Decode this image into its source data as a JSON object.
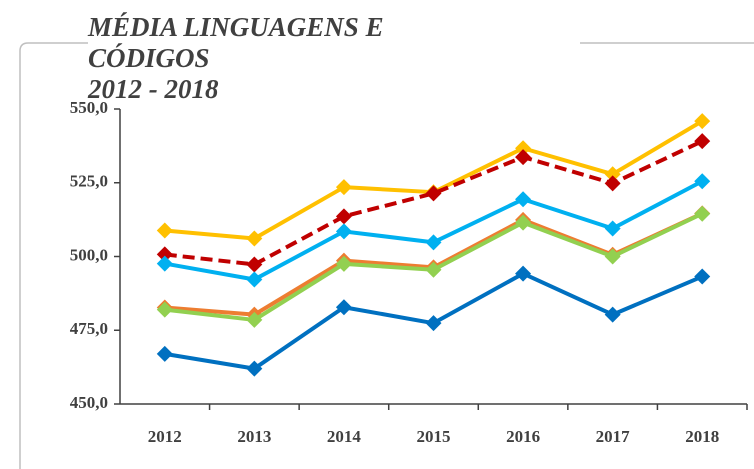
{
  "chart_data": {
    "type": "line",
    "title": "MÉDIA LINGUAGENS E CÓDIGOS",
    "subtitle": "2012 - 2018",
    "categories": [
      "2012",
      "2013",
      "2014",
      "2015",
      "2016",
      "2017",
      "2018"
    ],
    "series": [
      {
        "color": "#ffc000",
        "values": [
          508.8,
          506.1,
          523.5,
          521.8,
          536.7,
          527.9,
          545.9
        ]
      },
      {
        "color": "#c00000",
        "dashed": true,
        "values": [
          500.7,
          497.3,
          513.6,
          521.4,
          533.7,
          524.8,
          539.1
        ]
      },
      {
        "color": "#00b0f0",
        "values": [
          497.6,
          492.2,
          508.5,
          504.8,
          519.4,
          509.5,
          525.5
        ]
      },
      {
        "color": "#ed7d31",
        "values": [
          482.7,
          480.3,
          498.6,
          496.3,
          512.4,
          500.6,
          514.6
        ]
      },
      {
        "color": "#92d050",
        "values": [
          482.0,
          478.5,
          497.5,
          495.5,
          511.5,
          500.0,
          514.5
        ]
      },
      {
        "color": "#0070c0",
        "values": [
          467.0,
          462.0,
          482.8,
          477.4,
          494.2,
          480.3,
          493.2
        ]
      }
    ],
    "ylim": [
      450,
      550
    ],
    "yticks": [
      {
        "value": 450,
        "label": "450,0"
      },
      {
        "value": 475,
        "label": "475,0"
      },
      {
        "value": 500,
        "label": "500,0"
      },
      {
        "value": 525,
        "label": "525,0"
      },
      {
        "value": 550,
        "label": "550,0"
      }
    ]
  }
}
